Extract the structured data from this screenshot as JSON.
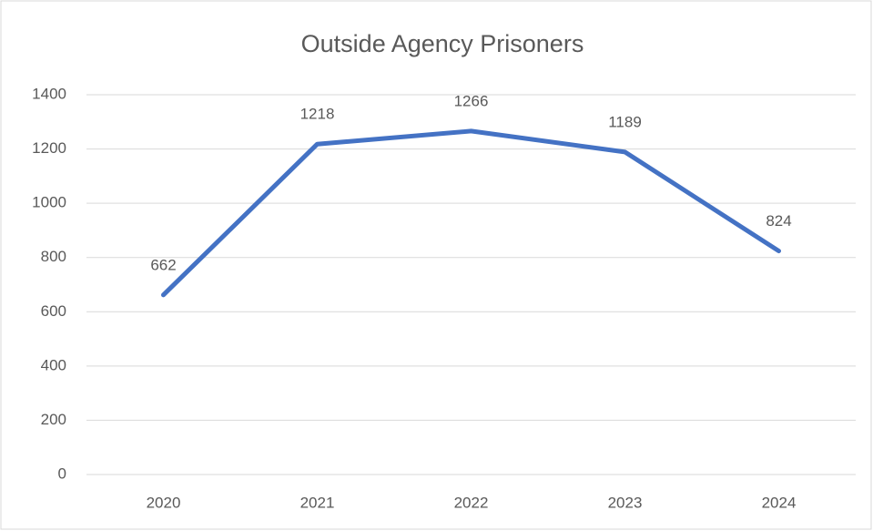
{
  "chart_data": {
    "type": "line",
    "title": "Outside Agency Prisoners",
    "categories": [
      "2020",
      "2021",
      "2022",
      "2023",
      "2024"
    ],
    "values": [
      662,
      1218,
      1266,
      1189,
      824
    ],
    "color": "#4472c4",
    "ylim": [
      0,
      1400
    ],
    "yticks": [
      0,
      200,
      400,
      600,
      800,
      1000,
      1200,
      1400
    ],
    "grid": true
  }
}
